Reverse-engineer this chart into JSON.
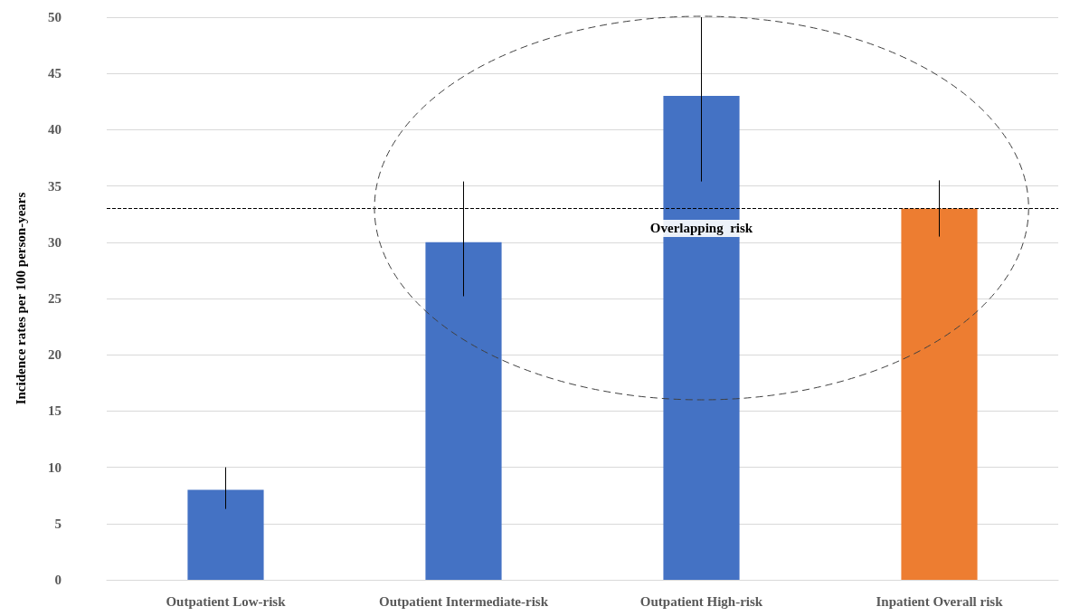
{
  "chart_data": {
    "type": "bar",
    "ylabel": "Incidence rates per 100 person-years",
    "categories": [
      "Outpatient Low-risk",
      "Outpatient Intermediate-risk",
      "Outpatient High-risk",
      "Inpatient Overall risk"
    ],
    "values": [
      8,
      30,
      43,
      33
    ],
    "colors": [
      "#4472c4",
      "#4472c4",
      "#4472c4",
      "#ed7d31"
    ],
    "errors": [
      [
        6.3,
        10
      ],
      [
        25.2,
        35.4
      ],
      [
        35.4,
        50
      ],
      [
        30.5,
        35.5
      ]
    ],
    "ylim": [
      0,
      50
    ],
    "yticks": [
      0,
      5,
      10,
      15,
      20,
      25,
      30,
      35,
      40,
      45,
      50
    ],
    "grid": "y",
    "ref_lines": [
      {
        "axis": "y",
        "value": 33,
        "color": "#000000",
        "line_style": "dashed"
      }
    ],
    "annotations": [
      "Overlapping  risk"
    ]
  }
}
